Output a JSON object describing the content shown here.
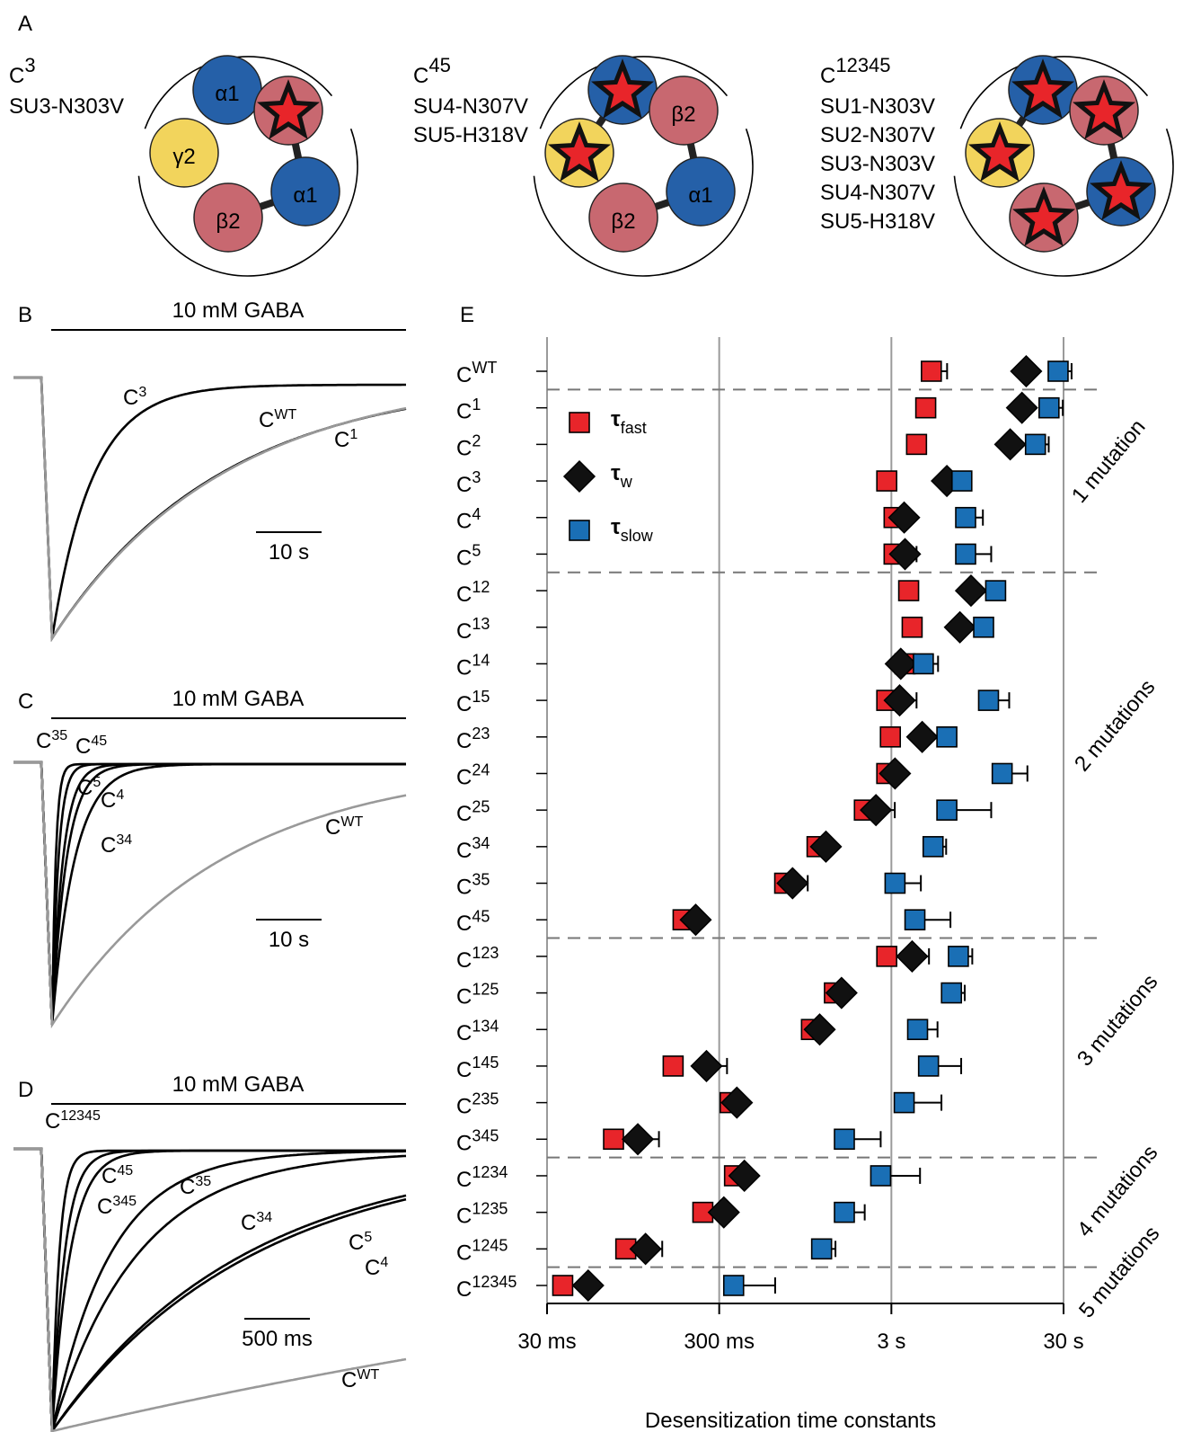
{
  "panel_a": {
    "letter": "A",
    "constructs": [
      {
        "name": "C3",
        "mutations": [
          "SU3-N303V"
        ],
        "subunits": [
          {
            "label": "α1",
            "color": "#2560a8"
          },
          {
            "color": "#c86870",
            "star": true
          },
          {
            "label": "α1",
            "color": "#2560a8"
          },
          {
            "label": "β2",
            "color": "#c86870"
          },
          {
            "label": "γ2",
            "color": "#f2d45c"
          }
        ]
      },
      {
        "name": "C45",
        "mutations": [
          "SU4-N307V",
          "SU5-H318V"
        ],
        "subunits": [
          {
            "color": "#2560a8",
            "star": true
          },
          {
            "label": "β2",
            "color": "#c86870"
          },
          {
            "label": "α1",
            "color": "#2560a8"
          },
          {
            "label": "β2",
            "color": "#c86870"
          },
          {
            "color": "#f2d45c",
            "star": true
          }
        ]
      },
      {
        "name": "C12345",
        "mutations": [
          "SU1-N303V",
          "SU2-N307V",
          "SU3-N303V",
          "SU4-N307V",
          "SU5-H318V"
        ],
        "subunits": [
          {
            "color": "#2560a8",
            "star": true
          },
          {
            "color": "#c86870",
            "star": true
          },
          {
            "color": "#2560a8",
            "star": true
          },
          {
            "color": "#c86870",
            "star": true
          },
          {
            "color": "#f2d45c",
            "star": true
          }
        ]
      }
    ]
  },
  "trace_panels": [
    {
      "letter": "B",
      "stimulus": "10 mM GABA",
      "scale_bar": "10 s",
      "traces": [
        {
          "label": "C3",
          "color": "#000000"
        },
        {
          "label": "CWT",
          "color": "#999999"
        },
        {
          "label": "C1",
          "color": "#000000"
        }
      ]
    },
    {
      "letter": "C",
      "stimulus": "10 mM GABA",
      "scale_bar": "10 s",
      "traces": [
        {
          "label": "C35",
          "color": "#000000"
        },
        {
          "label": "C45",
          "color": "#000000"
        },
        {
          "label": "C5",
          "color": "#000000"
        },
        {
          "label": "C4",
          "color": "#000000"
        },
        {
          "label": "C34",
          "color": "#000000"
        },
        {
          "label": "CWT",
          "color": "#999999"
        }
      ]
    },
    {
      "letter": "D",
      "stimulus": "10 mM GABA",
      "scale_bar": "500 ms",
      "traces": [
        {
          "label": "C12345",
          "color": "#000000"
        },
        {
          "label": "C45",
          "color": "#000000"
        },
        {
          "label": "C345",
          "color": "#000000"
        },
        {
          "label": "C35",
          "color": "#000000"
        },
        {
          "label": "C34",
          "color": "#000000"
        },
        {
          "label": "C5",
          "color": "#000000"
        },
        {
          "label": "C4",
          "color": "#000000"
        },
        {
          "label": "CWT",
          "color": "#999999"
        }
      ]
    }
  ],
  "chart_data": {
    "type": "dot",
    "letter": "E",
    "xlabel": "Desensitization time constants",
    "xscale": "log",
    "xlim": [
      0.03,
      30
    ],
    "xticks": [
      {
        "value": 0.03,
        "label": "30 ms"
      },
      {
        "value": 0.3,
        "label": "300 ms"
      },
      {
        "value": 3,
        "label": "3 s"
      },
      {
        "value": 30,
        "label": "30 s"
      }
    ],
    "grid": true,
    "legend": "upper left",
    "categories": [
      "CWT",
      "C1",
      "C2",
      "C3",
      "C4",
      "C5",
      "C12",
      "C13",
      "C14",
      "C15",
      "C23",
      "C24",
      "C25",
      "C34",
      "C35",
      "C45",
      "C123",
      "C125",
      "C134",
      "C145",
      "C235",
      "C345",
      "C1234",
      "C1235",
      "C1245",
      "C12345"
    ],
    "series": [
      {
        "name": "τfast",
        "color": "#e8252a",
        "marker": "square",
        "values": [
          5.12,
          4.75,
          4.2,
          2.82,
          3.11,
          3.11,
          3.78,
          3.96,
          3.6,
          2.82,
          2.96,
          2.82,
          2.09,
          1.11,
          0.72,
          0.185,
          2.82,
          1.4,
          1.03,
          0.162,
          0.347,
          0.073,
          0.368,
          0.241,
          0.086,
          0.037
        ],
        "errors": [
          1.2,
          null,
          null,
          null,
          null,
          null,
          null,
          null,
          null,
          null,
          null,
          null,
          null,
          null,
          null,
          null,
          null,
          null,
          null,
          null,
          null,
          null,
          null,
          null,
          null,
          null
        ]
      },
      {
        "name": "τw",
        "color": "#111111",
        "marker": "diamond",
        "values": [
          18.2,
          17.2,
          14.7,
          6.3,
          3.56,
          3.6,
          8.7,
          7.5,
          3.4,
          3.35,
          4.53,
          3.15,
          2.44,
          1.25,
          0.8,
          0.219,
          3.96,
          1.54,
          1.15,
          0.253,
          0.38,
          0.101,
          0.42,
          0.319,
          0.112,
          0.052
        ],
        "errors": [
          null,
          null,
          null,
          null,
          null,
          0.6,
          null,
          null,
          null,
          0.85,
          null,
          null,
          0.7,
          null,
          0.18,
          null,
          1.0,
          null,
          null,
          0.08,
          null,
          0.033,
          null,
          null,
          0.028,
          null
        ]
      },
      {
        "name": "τslow",
        "color": "#1a6fb5",
        "marker": "square",
        "values": [
          27.9,
          24.7,
          20.6,
          7.7,
          8.1,
          8.1,
          12.1,
          10.3,
          4.6,
          11.0,
          6.3,
          13.2,
          6.3,
          5.24,
          3.15,
          4.11,
          7.35,
          6.7,
          4.26,
          4.93,
          3.56,
          1.6,
          2.6,
          1.6,
          1.18,
          0.364
        ],
        "errors": [
          5.5,
          5,
          4,
          null,
          2.1,
          3.3,
          null,
          null,
          1.0,
          3.5,
          null,
          5.3,
          5.1,
          1.0,
          1.3,
          2.5,
          1.5,
          1.3,
          1.3,
          2.7,
          2.3,
          1.0,
          1.8,
          0.5,
          0.24,
          0.27
        ]
      }
    ],
    "annotations": [
      "1 mutation",
      "2 mutations",
      "3 mutations",
      "4 mutations",
      "5 mutations"
    ]
  }
}
